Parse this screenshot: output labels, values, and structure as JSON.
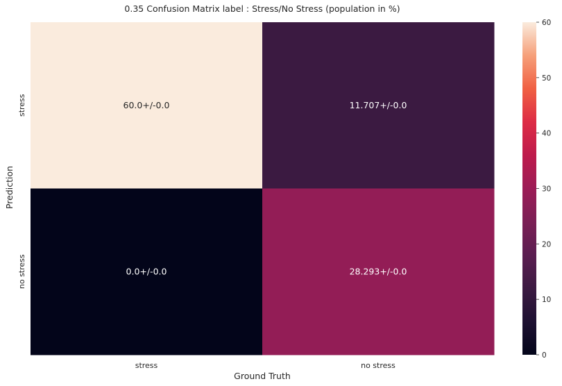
{
  "chart_data": {
    "type": "heatmap",
    "title": "0.35 Confusion Matrix label : Stress/No Stress (population in %)",
    "xlabel": "Ground Truth",
    "ylabel": "Prediction",
    "x_categories": [
      "stress",
      "no stress"
    ],
    "y_categories": [
      "stress",
      "no stress"
    ],
    "values": [
      [
        60.0,
        11.707
      ],
      [
        0.0,
        28.293
      ]
    ],
    "annotations": [
      [
        "60.0+/-0.0",
        "11.707+/-0.0"
      ],
      [
        "0.0+/-0.0",
        "28.293+/-0.0"
      ]
    ],
    "colorbar": {
      "vmin": 0,
      "vmax": 60,
      "ticks": [
        0,
        10,
        20,
        30,
        40,
        50,
        60
      ],
      "colormap": "rocket"
    }
  }
}
